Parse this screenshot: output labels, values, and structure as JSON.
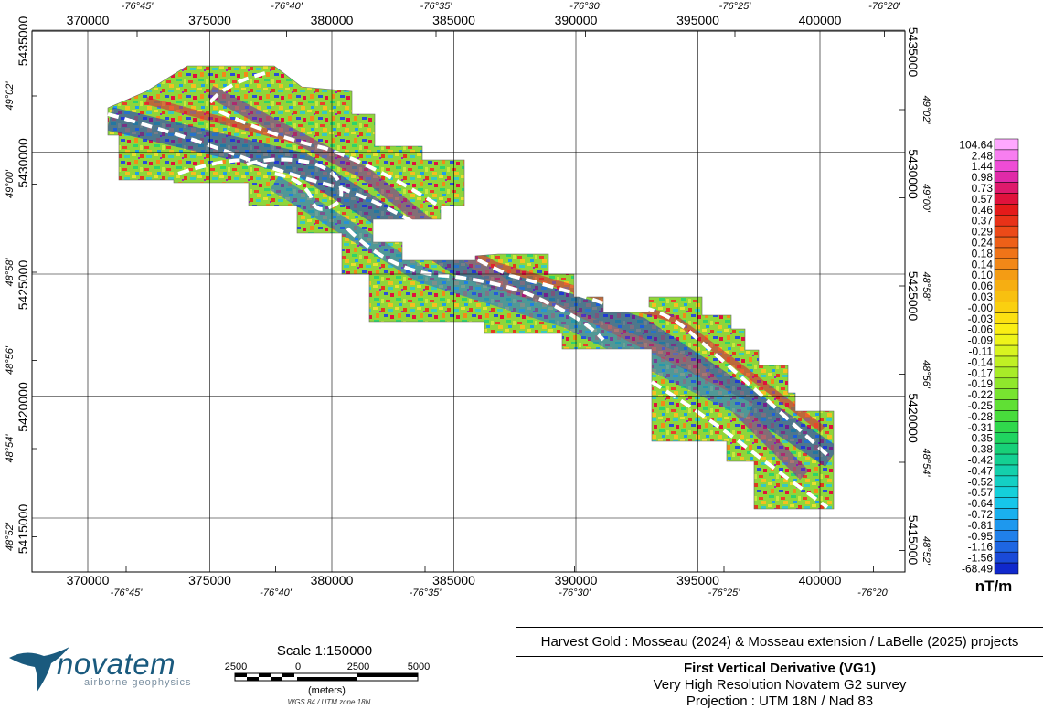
{
  "map": {
    "utm_easting_labels": [
      "370000",
      "375000",
      "380000",
      "385000",
      "390000",
      "395000",
      "400000"
    ],
    "utm_northing_labels": [
      "5435000",
      "5430000",
      "5425000",
      "5420000",
      "5415000"
    ],
    "lon_labels": [
      "-76°45'",
      "-76°40'",
      "-76°35'",
      "-76°30'",
      "-76°25'",
      "-76°20'"
    ],
    "lat_labels": [
      "49°02'",
      "49°00'",
      "48°58'",
      "48°56'",
      "48°54'",
      "48°52'"
    ]
  },
  "legend": {
    "values": [
      "104.64",
      "2.48",
      "1.44",
      "0.98",
      "0.73",
      "0.57",
      "0.46",
      "0.37",
      "0.29",
      "0.24",
      "0.18",
      "0.14",
      "0.10",
      "0.06",
      "0.03",
      "-0.00",
      "-0.03",
      "-0.06",
      "-0.09",
      "-0.11",
      "-0.14",
      "-0.17",
      "-0.19",
      "-0.22",
      "-0.25",
      "-0.28",
      "-0.31",
      "-0.35",
      "-0.38",
      "-0.42",
      "-0.47",
      "-0.52",
      "-0.57",
      "-0.64",
      "-0.72",
      "-0.81",
      "-0.95",
      "-1.16",
      "-1.56",
      "-68.49"
    ],
    "colors": [
      "#ffa8ff",
      "#f87ef0",
      "#ee4cd6",
      "#e02aa8",
      "#de1a6c",
      "#e0123c",
      "#e41a1a",
      "#e83218",
      "#ec4a18",
      "#ee6018",
      "#f07418",
      "#f28818",
      "#f49c14",
      "#f6ae12",
      "#f8c010",
      "#fad010",
      "#fce012",
      "#faee14",
      "#eef41a",
      "#d8f420",
      "#c0f024",
      "#a8ec28",
      "#90e82c",
      "#78e430",
      "#60e034",
      "#48dc3c",
      "#30d84c",
      "#20d460",
      "#18d078",
      "#14d092",
      "#14d0ac",
      "#14d0c4",
      "#14d0da",
      "#16c6ea",
      "#1ab0ee",
      "#1e98ee",
      "#2080ea",
      "#1e66e2",
      "#1a4ad8",
      "#1028cc"
    ],
    "unit": "nT/m"
  },
  "logo": {
    "name": "novatem",
    "tagline": "airborne geophysics"
  },
  "scale": {
    "title": "Scale 1:150000",
    "tick_labels": [
      "2500",
      "0",
      "2500",
      "5000"
    ],
    "unit": "(meters)",
    "datum": "WGS 84 / UTM zone 18N"
  },
  "title_block": {
    "project": "Harvest Gold : Mosseau (2024) & Mosseau extension / LaBelle (2025) projects",
    "product": "First Vertical Derivative (VG1)",
    "survey": "Very High Resolution Novatem G2 survey",
    "projection": "Projection : UTM 18N / Nad 83"
  }
}
